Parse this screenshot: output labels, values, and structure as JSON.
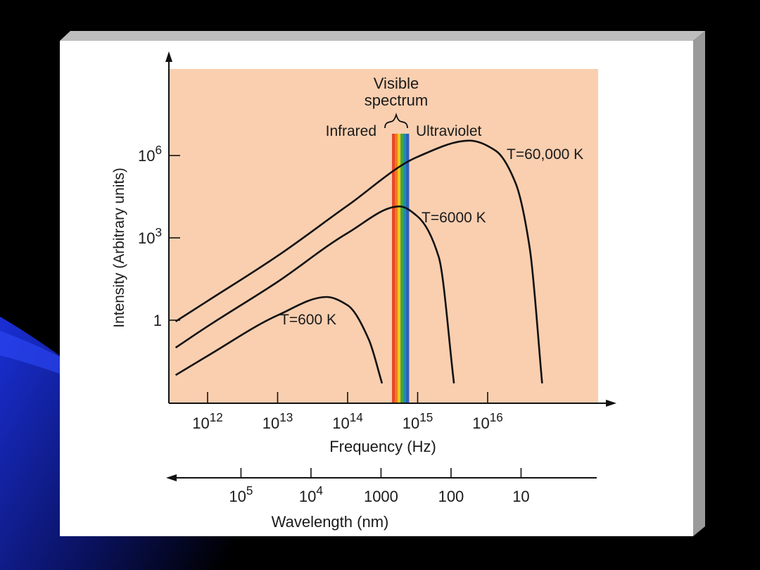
{
  "colors": {
    "slide_background": "#000000",
    "slide_accent": "#1a2fd6",
    "figure_panel": "#ffffff",
    "plot_background": "#f9cfb0",
    "curve_color": "#111111"
  },
  "chart_data": {
    "type": "line",
    "ylabel": "Intensity (Arbitrary units)",
    "y_scale": "log",
    "y_ticks": [
      {
        "base": "1",
        "exp": "",
        "value": 1
      },
      {
        "base": "10",
        "exp": "3",
        "value": 1000
      },
      {
        "base": "10",
        "exp": "6",
        "value": 1000000
      }
    ],
    "x_axis": {
      "label": "Frequency (Hz)",
      "scale": "log",
      "range": [
        350000000000.0,
        1.5e+18
      ],
      "ticks": [
        {
          "base": "10",
          "exp": "12",
          "value": 1000000000000.0
        },
        {
          "base": "10",
          "exp": "13",
          "value": 10000000000000.0
        },
        {
          "base": "10",
          "exp": "14",
          "value": 100000000000000.0
        },
        {
          "base": "10",
          "exp": "15",
          "value": 1000000000000000.0
        },
        {
          "base": "10",
          "exp": "16",
          "value": 1e+16
        }
      ]
    },
    "secondary_x_axis": {
      "label": "Wavelength (nm)",
      "direction": "decreasing to the right",
      "ticks": [
        {
          "base": "10",
          "exp": "5",
          "value": 100000
        },
        {
          "base": "10",
          "exp": "4",
          "value": 10000
        },
        {
          "base": "1000",
          "exp": "",
          "value": 1000
        },
        {
          "base": "100",
          "exp": "",
          "value": 100
        },
        {
          "base": "10",
          "exp": "",
          "value": 10
        }
      ]
    },
    "region_labels": {
      "visible_line1": "Visible",
      "visible_line2": "spectrum",
      "infrared": "Infrared",
      "ultraviolet": "Ultraviolet"
    },
    "visible_band": {
      "freq_range": [
        430000000000000.0,
        750000000000000.0
      ],
      "colors": [
        "#e8462a",
        "#f07a1e",
        "#f5c41c",
        "#3ca64a",
        "#1e8fa8",
        "#2d5fb8"
      ]
    },
    "series": [
      {
        "name": "T=600 K",
        "points": [
          {
            "x": 350000000000.0,
            "y": 0.01
          },
          {
            "x": 1000000000000.0,
            "y": 0.05
          },
          {
            "x": 10000000000000.0,
            "y": 1.5
          },
          {
            "x": 50000000000000.0,
            "y": 7
          },
          {
            "x": 100000000000000.0,
            "y": 3.5
          },
          {
            "x": 200000000000000.0,
            "y": 0.2
          },
          {
            "x": 310000000000000.0,
            "y": 0.005
          }
        ]
      },
      {
        "name": "T=6000 K",
        "points": [
          {
            "x": 350000000000.0,
            "y": 0.1
          },
          {
            "x": 1000000000000.0,
            "y": 0.6
          },
          {
            "x": 10000000000000.0,
            "y": 25
          },
          {
            "x": 100000000000000.0,
            "y": 1500
          },
          {
            "x": 550000000000000.0,
            "y": 14000
          },
          {
            "x": 1000000000000000.0,
            "y": 6000
          },
          {
            "x": 2000000000000000.0,
            "y": 200
          },
          {
            "x": 3300000000000000.0,
            "y": 0.005
          }
        ]
      },
      {
        "name": "T=60,000 K",
        "points": [
          {
            "x": 350000000000.0,
            "y": 0.9
          },
          {
            "x": 1000000000000.0,
            "y": 5
          },
          {
            "x": 10000000000000.0,
            "y": 220
          },
          {
            "x": 100000000000000.0,
            "y": 15000
          },
          {
            "x": 1000000000000000.0,
            "y": 900000
          },
          {
            "x": 5500000000000000.0,
            "y": 3500000
          },
          {
            "x": 1.3e+16,
            "y": 1500000
          },
          {
            "x": 2.5e+16,
            "y": 100000
          },
          {
            "x": 4e+16,
            "y": 400
          },
          {
            "x": 6e+16,
            "y": 0.005
          }
        ]
      }
    ]
  }
}
